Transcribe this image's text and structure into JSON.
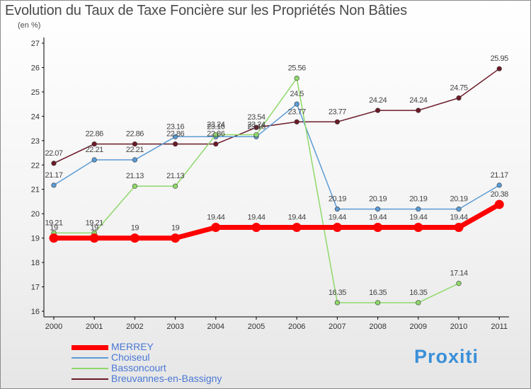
{
  "title": "Evolution du Taux de Taxe Foncière sur les Propriétés Non Bâties",
  "subtitle": "(en %)",
  "brand": "Proxiti",
  "colors": {
    "MERREY": "#ff0000",
    "Choiseul": "#5b9bd5",
    "Bassoncourt": "#8fd86a",
    "Breuvannes-en-Bassigny": "#6b1a28"
  },
  "chart_data": {
    "type": "line",
    "title": "Evolution du Taux de Taxe Foncière sur les Propriétés Non Bâties",
    "ylabel": "(en %)",
    "xlabel": "",
    "ylim": [
      16,
      27
    ],
    "yticks": [
      16,
      17,
      18,
      19,
      20,
      21,
      22,
      23,
      24,
      25,
      26,
      27
    ],
    "categories": [
      "2000",
      "2001",
      "2002",
      "2003",
      "2004",
      "2005",
      "2006",
      "2007",
      "2008",
      "2009",
      "2010",
      "2011"
    ],
    "grid": false,
    "legend": "bottom-left",
    "series": [
      {
        "name": "MERREY",
        "values": [
          19,
          19,
          19,
          19,
          19.44,
          19.44,
          19.44,
          19.44,
          19.44,
          19.44,
          19.44,
          20.38
        ],
        "labels": [
          "19",
          "19",
          "19",
          "19",
          "19.44",
          "19.44",
          "19.44",
          "19.44",
          "19.44",
          "19.44",
          "19.44",
          "20.38"
        ]
      },
      {
        "name": "Choiseul",
        "values": [
          21.17,
          22.21,
          22.21,
          23.16,
          23.16,
          23.16,
          24.5,
          20.19,
          20.19,
          20.19,
          20.19,
          21.17
        ],
        "labels": [
          "21.17",
          "22.21",
          "22.21",
          "23.16",
          "23.16",
          "23.16",
          "24.5",
          "20.19",
          "20.19",
          "20.19",
          "20.19",
          "21.17"
        ]
      },
      {
        "name": "Bassoncourt",
        "values": [
          19.21,
          19.21,
          21.13,
          21.13,
          23.24,
          23.24,
          25.56,
          16.35,
          16.35,
          16.35,
          17.14,
          null
        ],
        "labels": [
          "19.21",
          "19.21",
          "21.13",
          "21.13",
          "23.24",
          "23.24",
          "25.56",
          "16.35",
          "16.35",
          "16.35",
          "17.14",
          ""
        ]
      },
      {
        "name": "Breuvannes-en-Bassigny",
        "values": [
          22.07,
          22.86,
          22.86,
          22.86,
          22.86,
          23.54,
          23.77,
          23.77,
          24.24,
          24.24,
          24.75,
          25.95
        ],
        "labels": [
          "22.07",
          "22.86",
          "22.86",
          "22.86",
          "22.86",
          "23.54",
          "23.77",
          "23.77",
          "24.24",
          "24.24",
          "24.75",
          "25.95"
        ]
      }
    ]
  }
}
